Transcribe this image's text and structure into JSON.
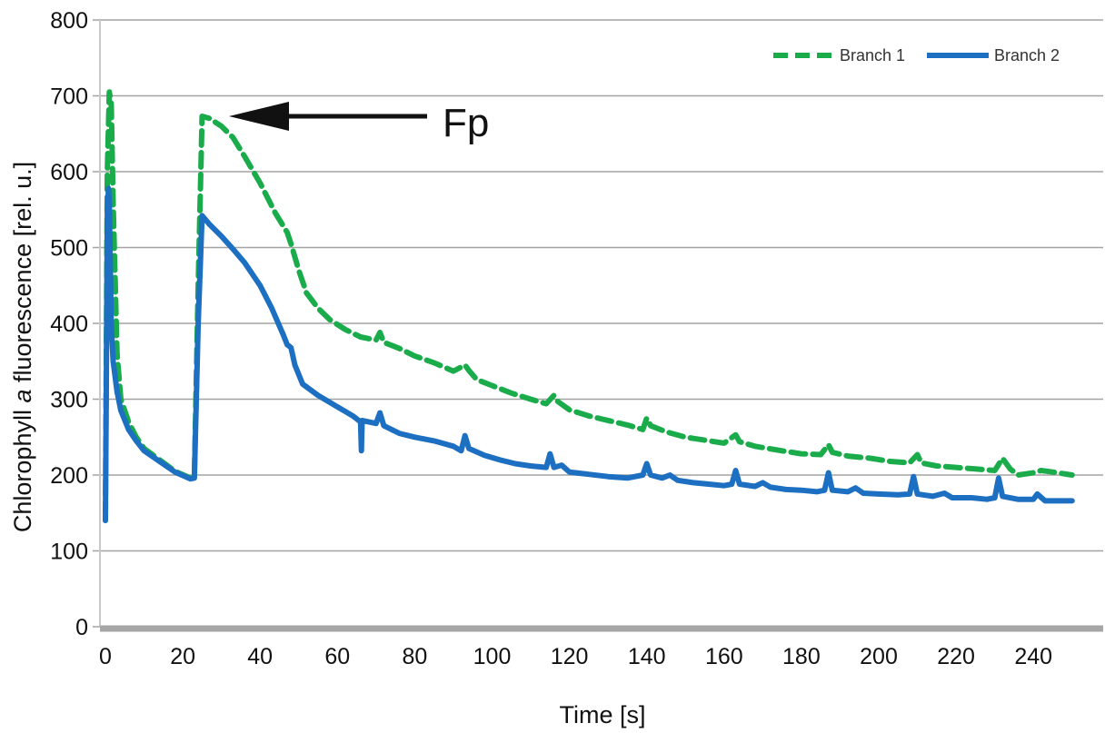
{
  "chart_data": {
    "type": "line",
    "title": "",
    "xlabel": "Time [s]",
    "ylabel": "Chlorophyll a fluorescence [rel. u.]",
    "ylabel_parts": [
      "Chlorophyll ",
      "a",
      " fluorescence [rel. u.]"
    ],
    "xlim": [
      -2,
      252
    ],
    "ylim": [
      0,
      800
    ],
    "x_ticks": [
      0,
      20,
      40,
      60,
      80,
      100,
      120,
      140,
      160,
      180,
      200,
      220,
      240
    ],
    "y_ticks": [
      0,
      100,
      200,
      300,
      400,
      500,
      600,
      700,
      800
    ],
    "grid": "horizontal",
    "legend_position": "top-right",
    "annotation": {
      "text": "Fp",
      "points_to": {
        "x": 25,
        "y": 673
      }
    },
    "series": [
      {
        "name": "Branch 1",
        "color": "#1aab4b",
        "dash": "dashed",
        "points": [
          [
            0,
            145
          ],
          [
            0.5,
            600
          ],
          [
            1,
            705
          ],
          [
            1.5,
            690
          ],
          [
            2,
            560
          ],
          [
            3,
            360
          ],
          [
            4,
            300
          ],
          [
            6,
            270
          ],
          [
            8,
            250
          ],
          [
            10,
            235
          ],
          [
            14,
            220
          ],
          [
            18,
            205
          ],
          [
            22,
            196
          ],
          [
            23,
            200
          ],
          [
            24,
            450
          ],
          [
            25,
            673
          ],
          [
            27,
            670
          ],
          [
            30,
            660
          ],
          [
            33,
            645
          ],
          [
            36,
            620
          ],
          [
            40,
            585
          ],
          [
            44,
            545
          ],
          [
            47,
            520
          ],
          [
            48,
            505
          ],
          [
            50,
            470
          ],
          [
            52,
            440
          ],
          [
            55,
            420
          ],
          [
            58,
            405
          ],
          [
            62,
            392
          ],
          [
            66,
            382
          ],
          [
            70,
            378
          ],
          [
            71,
            388
          ],
          [
            72,
            375
          ],
          [
            76,
            367
          ],
          [
            80,
            357
          ],
          [
            85,
            348
          ],
          [
            90,
            337
          ],
          [
            93,
            345
          ],
          [
            94,
            338
          ],
          [
            96,
            326
          ],
          [
            100,
            318
          ],
          [
            105,
            308
          ],
          [
            110,
            300
          ],
          [
            114,
            294
          ],
          [
            116,
            305
          ],
          [
            117,
            297
          ],
          [
            120,
            286
          ],
          [
            125,
            278
          ],
          [
            130,
            272
          ],
          [
            135,
            266
          ],
          [
            139,
            260
          ],
          [
            140,
            275
          ],
          [
            141,
            265
          ],
          [
            145,
            257
          ],
          [
            150,
            250
          ],
          [
            155,
            246
          ],
          [
            160,
            242
          ],
          [
            163,
            253
          ],
          [
            164,
            244
          ],
          [
            168,
            238
          ],
          [
            175,
            232
          ],
          [
            180,
            228
          ],
          [
            185,
            227
          ],
          [
            187,
            240
          ],
          [
            188,
            230
          ],
          [
            192,
            225
          ],
          [
            198,
            222
          ],
          [
            203,
            218
          ],
          [
            208,
            216
          ],
          [
            210,
            227
          ],
          [
            211,
            216
          ],
          [
            215,
            212
          ],
          [
            220,
            210
          ],
          [
            225,
            208
          ],
          [
            230,
            206
          ],
          [
            232,
            222
          ],
          [
            234,
            208
          ],
          [
            236,
            200
          ],
          [
            240,
            203
          ],
          [
            242,
            206
          ],
          [
            245,
            204
          ],
          [
            250,
            200
          ]
        ]
      },
      {
        "name": "Branch 2",
        "color": "#1c6fc1",
        "dash": "solid",
        "points": [
          [
            0,
            140
          ],
          [
            0.2,
            300
          ],
          [
            0.5,
            545
          ],
          [
            0.8,
            578
          ],
          [
            1,
            560
          ],
          [
            1.5,
            400
          ],
          [
            2,
            350
          ],
          [
            3,
            310
          ],
          [
            4,
            285
          ],
          [
            6,
            260
          ],
          [
            8,
            245
          ],
          [
            10,
            232
          ],
          [
            14,
            218
          ],
          [
            18,
            204
          ],
          [
            22,
            195
          ],
          [
            23,
            196
          ],
          [
            24,
            400
          ],
          [
            25,
            542
          ],
          [
            27,
            530
          ],
          [
            30,
            515
          ],
          [
            33,
            498
          ],
          [
            36,
            480
          ],
          [
            40,
            450
          ],
          [
            43,
            420
          ],
          [
            46,
            385
          ],
          [
            47,
            372
          ],
          [
            48,
            368
          ],
          [
            49,
            345
          ],
          [
            51,
            320
          ],
          [
            55,
            305
          ],
          [
            60,
            290
          ],
          [
            64,
            278
          ],
          [
            66,
            270
          ],
          [
            66.2,
            232
          ],
          [
            66.4,
            272
          ],
          [
            70,
            268
          ],
          [
            71,
            282
          ],
          [
            72,
            265
          ],
          [
            76,
            255
          ],
          [
            80,
            250
          ],
          [
            85,
            245
          ],
          [
            90,
            238
          ],
          [
            92,
            232
          ],
          [
            93,
            252
          ],
          [
            94,
            235
          ],
          [
            98,
            226
          ],
          [
            102,
            220
          ],
          [
            106,
            215
          ],
          [
            110,
            212
          ],
          [
            114,
            210
          ],
          [
            115,
            228
          ],
          [
            116,
            210
          ],
          [
            118,
            213
          ],
          [
            120,
            204
          ],
          [
            125,
            201
          ],
          [
            130,
            198
          ],
          [
            135,
            196
          ],
          [
            139,
            200
          ],
          [
            140,
            215
          ],
          [
            141,
            200
          ],
          [
            144,
            196
          ],
          [
            146,
            200
          ],
          [
            148,
            193
          ],
          [
            152,
            190
          ],
          [
            156,
            188
          ],
          [
            160,
            186
          ],
          [
            162,
            188
          ],
          [
            163,
            206
          ],
          [
            164,
            188
          ],
          [
            168,
            185
          ],
          [
            170,
            190
          ],
          [
            172,
            184
          ],
          [
            176,
            181
          ],
          [
            180,
            180
          ],
          [
            184,
            178
          ],
          [
            186,
            180
          ],
          [
            187,
            203
          ],
          [
            188,
            180
          ],
          [
            192,
            178
          ],
          [
            194,
            183
          ],
          [
            196,
            176
          ],
          [
            200,
            175
          ],
          [
            205,
            174
          ],
          [
            208,
            175
          ],
          [
            209,
            198
          ],
          [
            210,
            175
          ],
          [
            214,
            172
          ],
          [
            217,
            176
          ],
          [
            219,
            170
          ],
          [
            224,
            170
          ],
          [
            228,
            168
          ],
          [
            230,
            170
          ],
          [
            231,
            196
          ],
          [
            232,
            172
          ],
          [
            236,
            168
          ],
          [
            240,
            168
          ],
          [
            241,
            175
          ],
          [
            243,
            166
          ],
          [
            250,
            166
          ]
        ]
      }
    ]
  }
}
